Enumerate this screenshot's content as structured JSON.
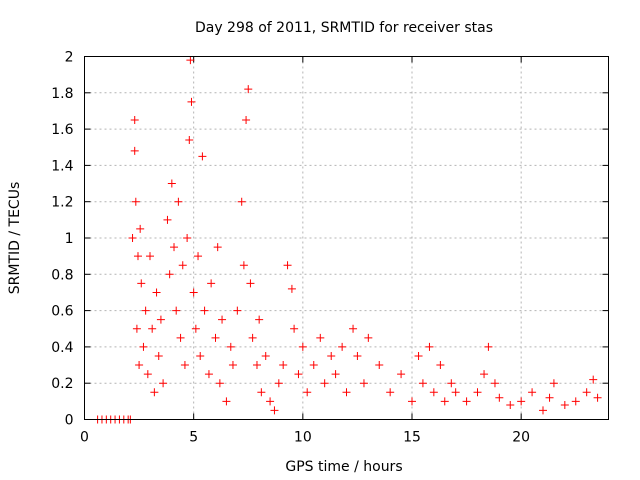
{
  "chart_data": {
    "type": "scatter",
    "title": "Day 298 of 2011, SRMTID for receiver stas",
    "xlabel": "GPS time / hours",
    "ylabel": "SRMTID / TECUs",
    "xlim": [
      0,
      24
    ],
    "ylim": [
      0,
      2
    ],
    "xticks": [
      0,
      5,
      10,
      15,
      20
    ],
    "xtick_labels": [
      "0",
      "5",
      "10",
      "15",
      "20"
    ],
    "yticks": [
      0,
      0.2,
      0.4,
      0.6,
      0.8,
      1,
      1.2,
      1.4,
      1.6,
      1.8,
      2
    ],
    "ytick_labels": [
      "0",
      "0.2",
      "0.4",
      "0.6",
      "0.8",
      "1",
      "1.2",
      "1.4",
      "1.6",
      "1.8",
      "2"
    ],
    "grid": true,
    "marker": "+",
    "color": "#ff0000",
    "series": [
      {
        "name": "stas",
        "x": [
          0.6,
          0.8,
          1.0,
          1.2,
          1.4,
          1.6,
          1.8,
          2.0,
          2.1,
          2.2,
          2.3,
          2.3,
          2.35,
          2.4,
          2.45,
          2.5,
          2.55,
          2.6,
          2.7,
          2.8,
          2.9,
          3.0,
          3.1,
          3.2,
          3.3,
          3.4,
          3.5,
          3.6,
          3.8,
          3.9,
          4.0,
          4.1,
          4.2,
          4.3,
          4.4,
          4.5,
          4.6,
          4.7,
          4.8,
          4.85,
          4.9,
          5.0,
          5.1,
          5.2,
          5.3,
          5.4,
          5.5,
          5.7,
          5.8,
          6.0,
          6.1,
          6.2,
          6.3,
          6.5,
          6.7,
          6.8,
          7.0,
          7.2,
          7.3,
          7.4,
          7.5,
          7.6,
          7.7,
          7.9,
          8.0,
          8.1,
          8.3,
          8.5,
          8.7,
          8.9,
          9.1,
          9.3,
          9.5,
          9.6,
          9.8,
          10.0,
          10.2,
          10.5,
          10.8,
          11.0,
          11.3,
          11.5,
          11.8,
          12.0,
          12.3,
          12.5,
          12.8,
          13.0,
          13.5,
          14.0,
          14.5,
          15.0,
          15.3,
          15.5,
          15.8,
          16.0,
          16.3,
          16.5,
          16.8,
          17.0,
          17.5,
          18.0,
          18.3,
          18.5,
          18.8,
          19.0,
          19.5,
          20.0,
          20.5,
          21.0,
          21.3,
          21.5,
          22.0,
          22.5,
          23.0,
          23.3,
          23.5
        ],
        "y": [
          0.0,
          0.0,
          0.0,
          0.0,
          0.0,
          0.0,
          0.0,
          0.0,
          0.0,
          1.0,
          1.48,
          1.65,
          1.2,
          0.5,
          0.9,
          0.3,
          1.05,
          0.75,
          0.4,
          0.6,
          0.25,
          0.9,
          0.5,
          0.15,
          0.7,
          0.35,
          0.55,
          0.2,
          1.1,
          0.8,
          1.3,
          0.95,
          0.6,
          1.2,
          0.45,
          0.85,
          0.3,
          1.0,
          1.54,
          1.98,
          1.75,
          0.7,
          0.5,
          0.9,
          0.35,
          1.45,
          0.6,
          0.25,
          0.75,
          0.45,
          0.95,
          0.2,
          0.55,
          0.1,
          0.4,
          0.3,
          0.6,
          1.2,
          0.85,
          1.65,
          1.82,
          0.75,
          0.45,
          0.3,
          0.55,
          0.15,
          0.35,
          0.1,
          0.05,
          0.2,
          0.3,
          0.85,
          0.72,
          0.5,
          0.25,
          0.4,
          0.15,
          0.3,
          0.45,
          0.2,
          0.35,
          0.25,
          0.4,
          0.15,
          0.5,
          0.35,
          0.2,
          0.45,
          0.3,
          0.15,
          0.25,
          0.1,
          0.35,
          0.2,
          0.4,
          0.15,
          0.3,
          0.1,
          0.2,
          0.15,
          0.1,
          0.15,
          0.25,
          0.4,
          0.2,
          0.12,
          0.08,
          0.1,
          0.15,
          0.05,
          0.12,
          0.2,
          0.08,
          0.1,
          0.15,
          0.22,
          0.12
        ]
      }
    ]
  }
}
